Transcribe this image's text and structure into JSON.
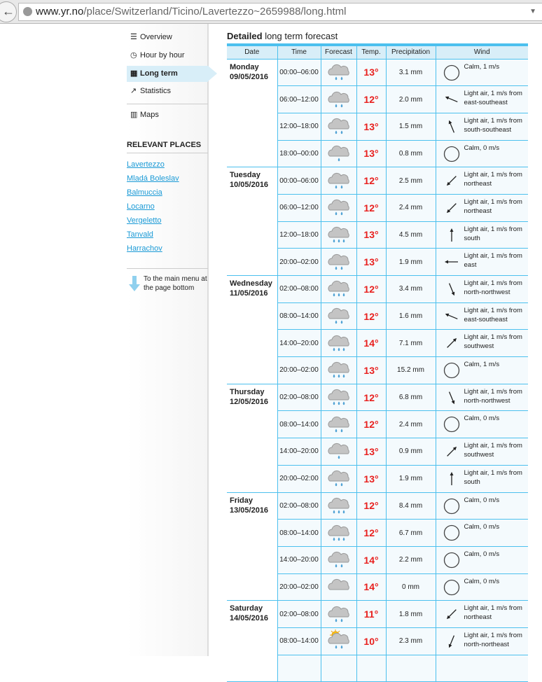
{
  "browser": {
    "url_host": "www.yr.no",
    "url_path": "/place/Switzerland/Ticino/Lavertezzo~2659988/long.html"
  },
  "sidebar": {
    "nav": [
      {
        "label": "Overview",
        "icon": "list-icon"
      },
      {
        "label": "Hour by hour",
        "icon": "clock-icon"
      },
      {
        "label": "Long term",
        "icon": "calendar-icon",
        "active": true
      },
      {
        "label": "Statistics",
        "icon": "chart-icon"
      },
      {
        "label": "Maps",
        "icon": "map-icon"
      }
    ],
    "relevant_title": "RELEVANT PLACES",
    "places": [
      "Lavertezzo",
      "Mladá Boleslav",
      "Balmuccia",
      "Locarno",
      "Vergeletto",
      "Tanvald",
      "Harrachov"
    ],
    "to_menu": "To the main menu at the page bottom"
  },
  "main": {
    "title_bold": "Detailed",
    "title_rest": " long term forecast",
    "columns": [
      "Date",
      "Time",
      "Forecast",
      "Temp.",
      "Precipitation",
      "Wind"
    ],
    "days": [
      {
        "day": "Monday",
        "date": "09/05/2016",
        "rows": [
          {
            "time": "00:00–06:00",
            "icon": "rain-2",
            "temp": "13°",
            "precip": "3.1 mm",
            "wind": "Calm, 1 m/s",
            "dir": ""
          },
          {
            "time": "06:00–12:00",
            "icon": "rain-2",
            "temp": "12°",
            "precip": "2.0 mm",
            "wind": "Light air, 1 m/s from east-southeast",
            "dir": "east-southeast"
          },
          {
            "time": "12:00–18:00",
            "icon": "rain-2",
            "temp": "13°",
            "precip": "1.5 mm",
            "wind": "Light air, 1 m/s from south-southeast",
            "dir": "south-southeast"
          },
          {
            "time": "18:00–00:00",
            "icon": "rain-1",
            "temp": "13°",
            "precip": "0.8 mm",
            "wind": "Calm, 0 m/s",
            "dir": ""
          }
        ]
      },
      {
        "day": "Tuesday",
        "date": "10/05/2016",
        "rows": [
          {
            "time": "00:00–06:00",
            "icon": "rain-2",
            "temp": "12°",
            "precip": "2.5 mm",
            "wind": "Light air, 1 m/s from northeast",
            "dir": "northeast"
          },
          {
            "time": "06:00–12:00",
            "icon": "rain-2",
            "temp": "12°",
            "precip": "2.4 mm",
            "wind": "Light air, 1 m/s from northeast",
            "dir": "northeast"
          },
          {
            "time": "12:00–18:00",
            "icon": "rain-3",
            "temp": "13°",
            "precip": "4.5 mm",
            "wind": "Light air, 1 m/s from south",
            "dir": "south"
          },
          {
            "time": "20:00–02:00",
            "icon": "rain-2",
            "temp": "13°",
            "precip": "1.9 mm",
            "wind": "Light air, 1 m/s from east",
            "dir": "east"
          }
        ]
      },
      {
        "day": "Wednesday",
        "date": "11/05/2016",
        "rows": [
          {
            "time": "02:00–08:00",
            "icon": "rain-3",
            "temp": "12°",
            "precip": "3.4 mm",
            "wind": "Light air, 1 m/s from north-northwest",
            "dir": "north-northwest"
          },
          {
            "time": "08:00–14:00",
            "icon": "rain-2",
            "temp": "12°",
            "precip": "1.6 mm",
            "wind": "Light air, 1 m/s from east-southeast",
            "dir": "east-southeast"
          },
          {
            "time": "14:00–20:00",
            "icon": "rain-3",
            "temp": "14°",
            "precip": "7.1 mm",
            "wind": "Light air, 1 m/s from southwest",
            "dir": "southwest"
          },
          {
            "time": "20:00–02:00",
            "icon": "rain-3",
            "temp": "13°",
            "precip": "15.2 mm",
            "wind": "Calm, 1 m/s",
            "dir": ""
          }
        ]
      },
      {
        "day": "Thursday",
        "date": "12/05/2016",
        "rows": [
          {
            "time": "02:00–08:00",
            "icon": "rain-3",
            "temp": "12°",
            "precip": "6.8 mm",
            "wind": "Light air, 1 m/s from north-northwest",
            "dir": "north-northwest"
          },
          {
            "time": "08:00–14:00",
            "icon": "rain-2",
            "temp": "12°",
            "precip": "2.4 mm",
            "wind": "Calm, 0 m/s",
            "dir": ""
          },
          {
            "time": "14:00–20:00",
            "icon": "rain-1",
            "temp": "13°",
            "precip": "0.9 mm",
            "wind": "Light air, 1 m/s from southwest",
            "dir": "southwest"
          },
          {
            "time": "20:00–02:00",
            "icon": "rain-2",
            "temp": "13°",
            "precip": "1.9 mm",
            "wind": "Light air, 1 m/s from south",
            "dir": "south"
          }
        ]
      },
      {
        "day": "Friday",
        "date": "13/05/2016",
        "rows": [
          {
            "time": "02:00–08:00",
            "icon": "rain-3",
            "temp": "12°",
            "precip": "8.4 mm",
            "wind": "Calm, 0 m/s",
            "dir": ""
          },
          {
            "time": "08:00–14:00",
            "icon": "rain-3",
            "temp": "12°",
            "precip": "6.7 mm",
            "wind": "Calm, 0 m/s",
            "dir": ""
          },
          {
            "time": "14:00–20:00",
            "icon": "rain-2",
            "temp": "14°",
            "precip": "2.2 mm",
            "wind": "Calm, 0 m/s",
            "dir": ""
          },
          {
            "time": "20:00–02:00",
            "icon": "cloud",
            "temp": "14°",
            "precip": "0 mm",
            "wind": "Calm, 0 m/s",
            "dir": ""
          }
        ]
      },
      {
        "day": "Saturday",
        "date": "14/05/2016",
        "rows": [
          {
            "time": "02:00–08:00",
            "icon": "rain-2",
            "temp": "11°",
            "precip": "1.8 mm",
            "wind": "Light air, 1 m/s from northeast",
            "dir": "northeast"
          },
          {
            "time": "08:00–14:00",
            "icon": "sun-rain-2",
            "temp": "10°",
            "precip": "2.3 mm",
            "wind": "Light air, 1 m/s from north-northeast",
            "dir": "north-northeast"
          },
          {
            "time": "",
            "icon": "",
            "temp": "",
            "precip": "",
            "wind": "",
            "dir": ""
          }
        ]
      }
    ]
  },
  "colors": {
    "accent": "#4cc0ee",
    "temp": "#e8201e",
    "link": "#1a9ad6",
    "active_bg": "#d8eef8"
  }
}
